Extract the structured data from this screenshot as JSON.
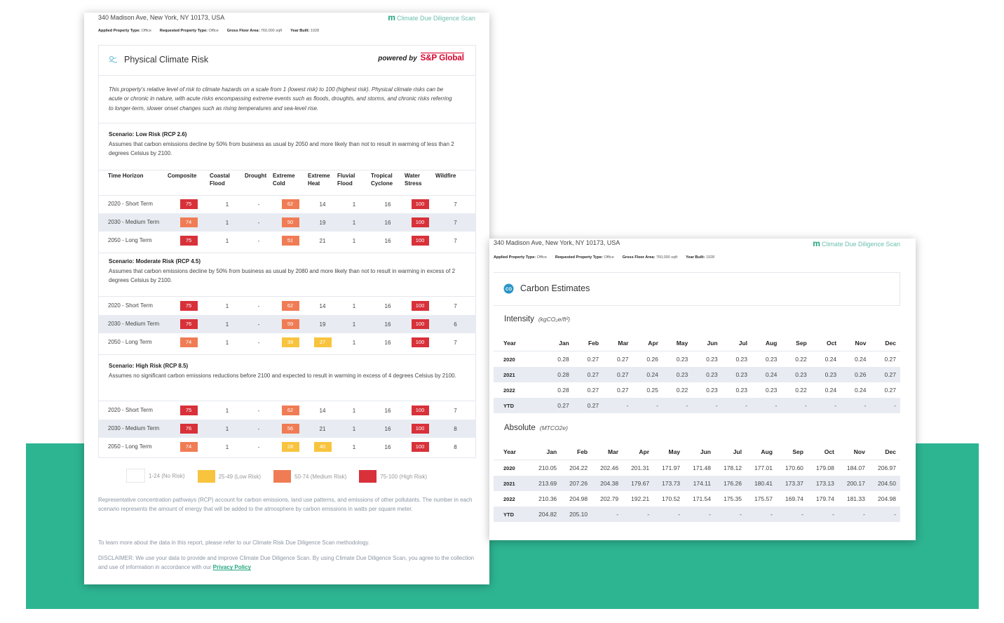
{
  "colors": {
    "brand_green": "#2db592",
    "high": "#d8313a",
    "medium": "#f07c55",
    "low": "#f8c43e"
  },
  "address": "340 Madison Ave, New York, NY 10173, USA",
  "brand": {
    "mark": "m",
    "name": "Climate Due Diligence Scan"
  },
  "meta": [
    {
      "label": "Applied Property Type:",
      "value": "Office"
    },
    {
      "label": "Requested Property Type:",
      "value": "Office"
    },
    {
      "label": "Gross Floor Area:",
      "value": "760,000 sqft"
    },
    {
      "label": "Year Built:",
      "value": "1928"
    }
  ],
  "physical": {
    "title": "Physical Climate Risk",
    "powered_by": "powered by",
    "powered_brand": "S&P Global",
    "intro": "This property's relative level of risk to climate hazards on a scale from 1 (lowest risk) to 100 (highest risk). Physical climate risks can be acute or chronic in nature, with acute risks encompassing extreme events such as floods, droughts, and storms, and chronic risks referring to longer-term, slower onset changes such as rising temperatures and sea-level rise.",
    "headers": [
      "Time Horizon",
      "Composite",
      "Coastal Flood",
      "Drought",
      "Extreme Cold",
      "Extreme Heat",
      "Fluvial Flood",
      "Tropical Cyclone",
      "Water Stress",
      "Wildfire"
    ],
    "scenarios": [
      {
        "title": "Scenario: Low Risk (RCP 2.6)",
        "desc": "Assumes that carbon emissions decline by 50% from business as usual by 2050 and more likely than not to result in warming of less than 2 degrees Celsius by 2100.",
        "rows": [
          {
            "horizon": "2020 - Short Term",
            "values": [
              "75",
              "1",
              "-",
              "62",
              "14",
              "1",
              "16",
              "100",
              "7"
            ]
          },
          {
            "horizon": "2030 - Medium Term",
            "values": [
              "74",
              "1",
              "-",
              "50",
              "19",
              "1",
              "16",
              "100",
              "7"
            ]
          },
          {
            "horizon": "2050 - Long Term",
            "values": [
              "75",
              "1",
              "-",
              "51",
              "21",
              "1",
              "16",
              "100",
              "7"
            ]
          }
        ]
      },
      {
        "title": "Scenario: Moderate Risk (RCP 4.5)",
        "desc": "Assumes that carbon emissions decline by 50% from business as usual by 2080 and more likely than not to result in warming in excess of 2 degrees Celsius by 2100.",
        "rows": [
          {
            "horizon": "2020 - Short Term",
            "values": [
              "75",
              "1",
              "-",
              "62",
              "14",
              "1",
              "16",
              "100",
              "7"
            ]
          },
          {
            "horizon": "2030 - Medium Term",
            "values": [
              "76",
              "1",
              "-",
              "59",
              "19",
              "1",
              "16",
              "100",
              "6"
            ]
          },
          {
            "horizon": "2050 - Long Term",
            "values": [
              "74",
              "1",
              "-",
              "39",
              "27",
              "1",
              "16",
              "100",
              "7"
            ]
          }
        ]
      },
      {
        "title": "Scenario: High Risk (RCP 8.5)",
        "desc": "Assumes no significant carbon emissions reductions before 2100 and expected to result in warming in excess of 4 degrees Celsius by 2100.",
        "rows": [
          {
            "horizon": "2020 - Short Term",
            "values": [
              "75",
              "1",
              "-",
              "62",
              "14",
              "1",
              "16",
              "100",
              "7"
            ]
          },
          {
            "horizon": "2030 - Medium Term",
            "values": [
              "76",
              "1",
              "-",
              "56",
              "21",
              "1",
              "16",
              "100",
              "8"
            ]
          },
          {
            "horizon": "2050 - Long Term",
            "values": [
              "74",
              "1",
              "-",
              "28",
              "40",
              "1",
              "16",
              "100",
              "8"
            ]
          }
        ]
      }
    ],
    "legend": [
      {
        "label": "1-24 (No Risk)",
        "color": "#ffffff"
      },
      {
        "label": "25-49 (Low Risk)",
        "color": "#f8c43e"
      },
      {
        "label": "50-74 (Medium Risk)",
        "color": "#f07c55"
      },
      {
        "label": "75-100 (High Risk)",
        "color": "#d8313a"
      }
    ],
    "rcp_note": "Representative concentration pathways (RCP) account for carbon emissions, land use patterns, and emissions of other pollutants. The number in each scenario represents the amount of energy that will be added to the atmosphere by carbon emissions in watts per square meter.",
    "learn_more": "To learn more about the data in this report, please refer to our Climate Risk Due Diligence Scan methodology.",
    "disclaimer": "DISCLAIMER: We use your data to provide and improve Climate Due Diligence Scan. By using Climate Due Diligence Scan, you agree to the collection and use of information in accordance with our",
    "privacy_link": "Privacy Policy"
  },
  "carbon": {
    "title": "Carbon Estimates",
    "icon_text": "CO",
    "months": [
      "Year",
      "Jan",
      "Feb",
      "Mar",
      "Apr",
      "May",
      "Jun",
      "Jul",
      "Aug",
      "Sep",
      "Oct",
      "Nov",
      "Dec"
    ],
    "intensity": {
      "label": "Intensity",
      "unit": "(kgCO₂e/ft²)",
      "rows": [
        [
          "2020",
          "0.28",
          "0.27",
          "0.27",
          "0.26",
          "0.23",
          "0.23",
          "0.23",
          "0.23",
          "0.22",
          "0.24",
          "0.24",
          "0.27"
        ],
        [
          "2021",
          "0.28",
          "0.27",
          "0.27",
          "0.24",
          "0.23",
          "0.23",
          "0.23",
          "0.24",
          "0.23",
          "0.23",
          "0.26",
          "0.27"
        ],
        [
          "2022",
          "0.28",
          "0.27",
          "0.27",
          "0.25",
          "0.22",
          "0.23",
          "0.23",
          "0.23",
          "0.22",
          "0.24",
          "0.24",
          "0.27"
        ],
        [
          "YTD",
          "0.27",
          "0.27",
          "-",
          "-",
          "-",
          "-",
          "-",
          "-",
          "-",
          "-",
          "-",
          "-"
        ]
      ]
    },
    "absolute": {
      "label": "Absolute",
      "unit": "(MTCO2e)",
      "rows": [
        [
          "2020",
          "210.05",
          "204.22",
          "202.46",
          "201.31",
          "171.97",
          "171.48",
          "178.12",
          "177.01",
          "170.60",
          "179.08",
          "184.07",
          "206.97"
        ],
        [
          "2021",
          "213.69",
          "207.26",
          "204.38",
          "179.67",
          "173.73",
          "174.11",
          "176.26",
          "180.41",
          "173.37",
          "173.13",
          "200.17",
          "204.50"
        ],
        [
          "2022",
          "210.36",
          "204.98",
          "202.79",
          "192.21",
          "170.52",
          "171.54",
          "175.35",
          "175.57",
          "169.74",
          "179.74",
          "181.33",
          "204.98"
        ],
        [
          "YTD",
          "204.82",
          "205.10",
          "-",
          "-",
          "-",
          "-",
          "-",
          "-",
          "-",
          "-",
          "-",
          "-"
        ]
      ]
    }
  }
}
